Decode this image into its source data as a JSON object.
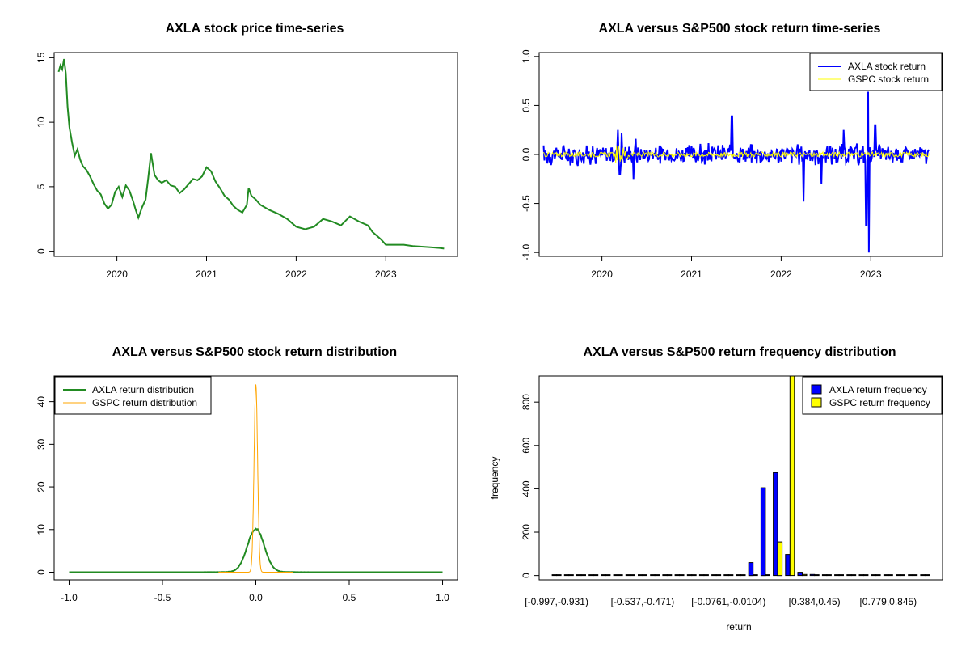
{
  "chart_data": [
    {
      "id": "price",
      "type": "line",
      "title": "AXLA stock price time-series",
      "xlabel": "",
      "ylabel": "",
      "x_ticks": [
        "2020",
        "2021",
        "2022",
        "2023"
      ],
      "x_tick_pos": [
        2020.0,
        2021.0,
        2022.0,
        2023.0
      ],
      "y_ticks": [
        0,
        5,
        10,
        15
      ],
      "xlim": [
        2019.3,
        2023.8
      ],
      "ylim": [
        -0.4,
        15.4
      ],
      "colors": {
        "line": "#228B22"
      },
      "series": [
        {
          "x": [
            2019.35,
            2019.37,
            2019.39,
            2019.41,
            2019.43,
            2019.45,
            2019.47,
            2019.5,
            2019.53,
            2019.56,
            2019.59,
            2019.62,
            2019.66,
            2019.7,
            2019.74,
            2019.78,
            2019.82,
            2019.86,
            2019.9,
            2019.94,
            2019.98,
            2020.02,
            2020.06,
            2020.1,
            2020.14,
            2020.18,
            2020.21,
            2020.24,
            2020.28,
            2020.32,
            2020.35,
            2020.38,
            2020.42,
            2020.46,
            2020.5,
            2020.55,
            2020.6,
            2020.65,
            2020.7,
            2020.75,
            2020.8,
            2020.85,
            2020.9,
            2020.95,
            2021.0,
            2021.05,
            2021.1,
            2021.15,
            2021.2,
            2021.25,
            2021.3,
            2021.35,
            2021.4,
            2021.45,
            2021.47,
            2021.5,
            2021.55,
            2021.6,
            2021.7,
            2021.8,
            2021.9,
            2022.0,
            2022.1,
            2022.2,
            2022.3,
            2022.4,
            2022.5,
            2022.6,
            2022.7,
            2022.8,
            2022.85,
            2022.9,
            2022.95,
            2023.0,
            2023.05,
            2023.1,
            2023.2,
            2023.3,
            2023.4,
            2023.5,
            2023.6,
            2023.65
          ],
          "y": [
            13.9,
            14.4,
            14.1,
            14.9,
            13.8,
            11.2,
            9.6,
            8.4,
            7.4,
            7.9,
            7.1,
            6.6,
            6.3,
            5.8,
            5.2,
            4.7,
            4.4,
            3.7,
            3.3,
            3.6,
            4.6,
            5.0,
            4.2,
            5.1,
            4.7,
            3.9,
            3.2,
            2.6,
            3.4,
            4.0,
            5.7,
            7.6,
            5.9,
            5.5,
            5.3,
            5.5,
            5.1,
            5.0,
            4.5,
            4.8,
            5.2,
            5.6,
            5.5,
            5.8,
            6.5,
            6.2,
            5.4,
            4.9,
            4.3,
            4.0,
            3.5,
            3.2,
            3.0,
            3.6,
            4.9,
            4.3,
            4.0,
            3.6,
            3.2,
            2.9,
            2.5,
            1.9,
            1.7,
            1.9,
            2.5,
            2.3,
            2.0,
            2.7,
            2.3,
            2.0,
            1.5,
            1.2,
            0.9,
            0.5,
            0.5,
            0.5,
            0.5,
            0.4,
            0.35,
            0.3,
            0.25,
            0.2
          ]
        }
      ]
    },
    {
      "id": "returns",
      "type": "line",
      "title": "AXLA versus S&P500 stock return time-series",
      "xlabel": "",
      "ylabel": "",
      "x_ticks": [
        "2020",
        "2021",
        "2022",
        "2023"
      ],
      "x_tick_pos": [
        2020.0,
        2021.0,
        2022.0,
        2023.0
      ],
      "y_ticks": [
        "-1.0",
        "-0.5",
        "0.0",
        "0.5",
        "1.0"
      ],
      "y_tick_pos": [
        -1.0,
        -0.5,
        0.0,
        0.5,
        1.0
      ],
      "xlim": [
        2019.3,
        2023.8
      ],
      "ylim": [
        -1.04,
        1.04
      ],
      "legend": {
        "position": "top-right",
        "labels": [
          "AXLA stock return",
          "GSPC stock return"
        ]
      },
      "colors": {
        "axla": "#0000FF",
        "gspc": "#FFFF00"
      },
      "axla_spikes": [
        {
          "x": 2020.18,
          "y": 0.25
        },
        {
          "x": 2020.2,
          "y": -0.2
        },
        {
          "x": 2020.22,
          "y": 0.22
        },
        {
          "x": 2020.35,
          "y": -0.25
        },
        {
          "x": 2020.38,
          "y": 0.16
        },
        {
          "x": 2021.45,
          "y": 0.39
        },
        {
          "x": 2022.25,
          "y": -0.48
        },
        {
          "x": 2022.45,
          "y": -0.3
        },
        {
          "x": 2022.7,
          "y": 0.25
        },
        {
          "x": 2022.95,
          "y": -0.72
        },
        {
          "x": 2022.97,
          "y": 0.64
        },
        {
          "x": 2022.98,
          "y": -1.0
        },
        {
          "x": 2023.05,
          "y": 0.3
        }
      ],
      "axla_noise_amp": 0.09,
      "gspc_noise_amp": 0.025,
      "gspc_spike_window": [
        2020.15,
        2020.3
      ],
      "gspc_spike_amp": 0.09
    },
    {
      "id": "density",
      "type": "line",
      "title": "AXLA versus S&P500 stock return distribution",
      "xlabel": "",
      "ylabel": "",
      "x_ticks": [
        "-1.0",
        "-0.5",
        "0.0",
        "0.5",
        "1.0"
      ],
      "x_tick_pos": [
        -1.0,
        -0.5,
        0.0,
        0.5,
        1.0
      ],
      "y_ticks": [
        0,
        10,
        20,
        30,
        40
      ],
      "xlim": [
        -1.08,
        1.08
      ],
      "ylim": [
        -1.8,
        46
      ],
      "legend": {
        "position": "top-left",
        "labels": [
          "AXLA return distribution",
          "GSPC return distribution"
        ]
      },
      "colors": {
        "axla": "#228B22",
        "gspc": "#FFA500"
      },
      "series": [
        {
          "name": "AXLA return distribution",
          "peak": 10.0,
          "sigma": 0.045,
          "x_range": [
            -1.0,
            1.0
          ]
        },
        {
          "name": "GSPC return distribution",
          "peak": 44.0,
          "sigma": 0.0095,
          "x_range": [
            -0.2,
            0.2
          ]
        }
      ]
    },
    {
      "id": "freq",
      "type": "bar",
      "title": "AXLA versus S&P500 return frequency distribution",
      "xlabel": "return",
      "ylabel": "frequency",
      "x_ticks": [
        "[-0.997,-0.931)",
        "[-0.537,-0.471)",
        "[-0.0761,-0.0104)",
        "[0.384,0.45)",
        "[0.779,0.845)"
      ],
      "x_tick_bins": [
        0,
        7,
        14,
        21,
        27
      ],
      "y_ticks": [
        0,
        200,
        400,
        600,
        800
      ],
      "ylim": [
        -20,
        920
      ],
      "legend": {
        "position": "top-right",
        "labels": [
          "AXLA return frequency",
          "GSPC return frequency"
        ]
      },
      "colors": {
        "axla": "#0000FF",
        "gspc": "#FFFF00"
      },
      "series": [
        {
          "name": "AXLA return frequency",
          "values": [
            1,
            0,
            0,
            0,
            0,
            0,
            0,
            1,
            0,
            0,
            0,
            0,
            1,
            2,
            2,
            3,
            60,
            405,
            475,
            97,
            15,
            5,
            3,
            2,
            1,
            1,
            0,
            0,
            0,
            0,
            0
          ]
        },
        {
          "name": "GSPC return frequency",
          "values": [
            0,
            0,
            0,
            0,
            0,
            0,
            0,
            0,
            0,
            0,
            0,
            0,
            0,
            0,
            0,
            0,
            0,
            0,
            155,
            920,
            5,
            0,
            0,
            0,
            0,
            0,
            0,
            0,
            0,
            0,
            0
          ]
        }
      ]
    }
  ]
}
